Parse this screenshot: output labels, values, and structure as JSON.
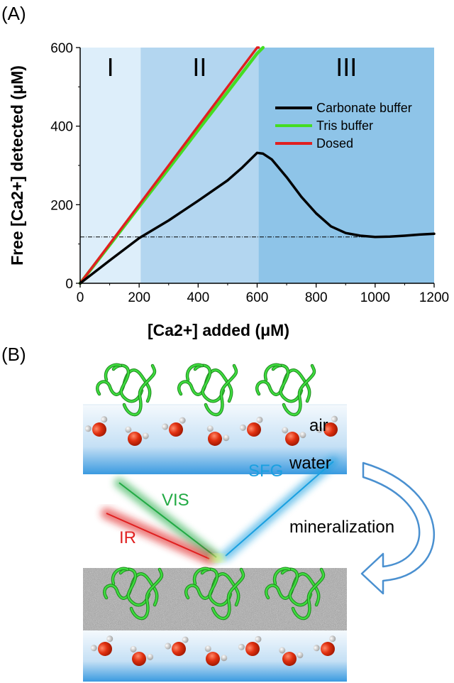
{
  "panel_a_label": "(A)",
  "panel_b_label": "(B)",
  "chart_data": {
    "type": "line",
    "xlabel": "[Ca2+] added (μM)",
    "ylabel": "Free [Ca2+] detected (μM)",
    "xlim": [
      0,
      1200
    ],
    "ylim": [
      0,
      600
    ],
    "x_ticks": [
      "0",
      "200",
      "400",
      "600",
      "800",
      "1000",
      "1200"
    ],
    "y_ticks": [
      "0",
      "200",
      "400",
      "600"
    ],
    "x_tick_values": [
      0,
      200,
      400,
      600,
      800,
      1000,
      1200
    ],
    "y_tick_values": [
      0,
      200,
      400,
      600
    ],
    "grid": false,
    "legend_position": "top-right",
    "regions": [
      {
        "label": "I",
        "x0": 0,
        "x1": 205,
        "color": "#ddeefa"
      },
      {
        "label": "II",
        "x0": 205,
        "x1": 605,
        "color": "#b3d6f0"
      },
      {
        "label": "III",
        "x0": 605,
        "x1": 1200,
        "color": "#8ec4e8"
      }
    ],
    "reference_line_y": 118,
    "series": [
      {
        "name": "Carbonate buffer",
        "color": "#000000",
        "x": [
          0,
          100,
          200,
          300,
          400,
          500,
          550,
          600,
          620,
          650,
          700,
          750,
          800,
          850,
          900,
          950,
          1000,
          1050,
          1100,
          1150,
          1200
        ],
        "y": [
          0,
          58,
          115,
          160,
          210,
          262,
          295,
          332,
          330,
          315,
          270,
          220,
          178,
          145,
          128,
          121,
          118,
          119,
          121,
          124,
          126
        ]
      },
      {
        "name": "Tris buffer",
        "color": "#44dd22",
        "x": [
          0,
          100,
          200,
          300,
          400,
          500,
          600,
          620
        ],
        "y": [
          0,
          97,
          195,
          292,
          390,
          487,
          585,
          600
        ]
      },
      {
        "name": "Dosed",
        "color": "#e02020",
        "x": [
          0,
          100,
          200,
          300,
          400,
          500,
          600,
          605
        ],
        "y": [
          0,
          100,
          200,
          300,
          400,
          500,
          600,
          605
        ]
      }
    ]
  },
  "diagram": {
    "air_label": "air",
    "water_label": "water",
    "vis_label": "VIS",
    "ir_label": "IR",
    "sfg_label": "SFG",
    "mineralization_label": "mineralization",
    "vis_color": "#22aa44",
    "ir_color": "#e02020",
    "sfg_color": "#1aa0e0",
    "arrow_color": "#4a90d0"
  }
}
